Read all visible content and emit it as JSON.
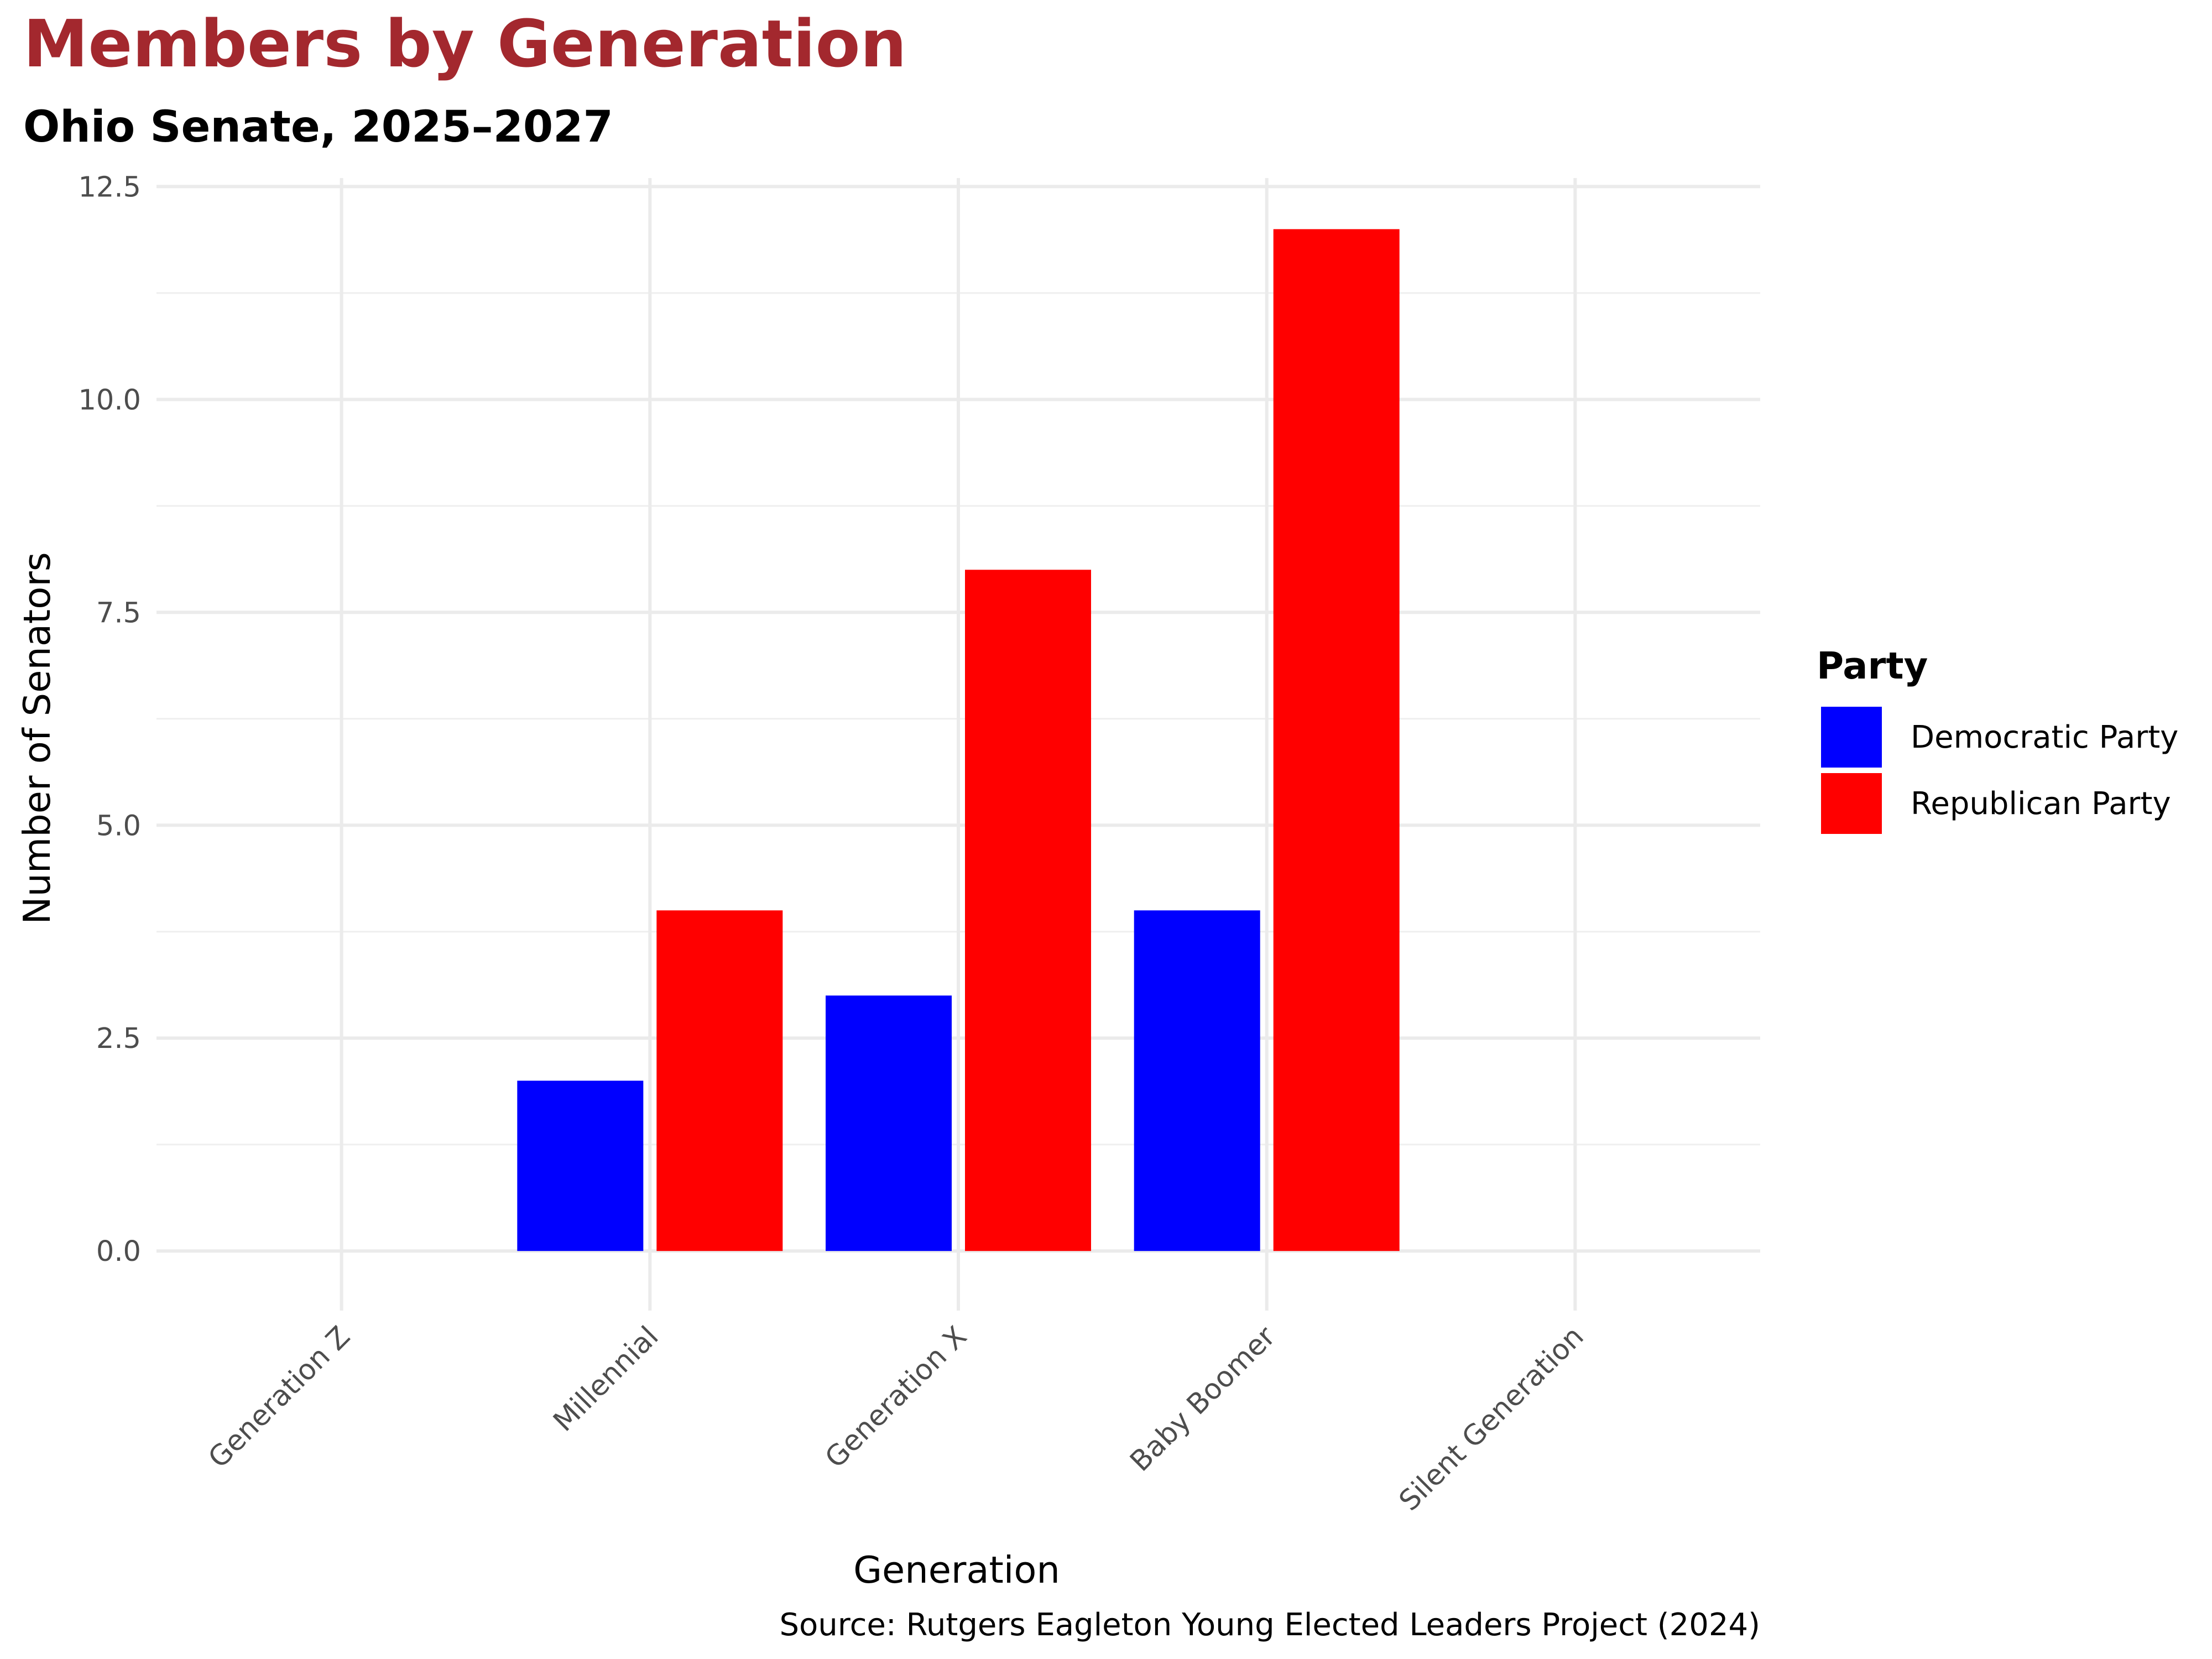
{
  "chart_data": {
    "type": "bar",
    "title": "Members by Generation",
    "subtitle": "Ohio Senate, 2025–2027",
    "xlabel": "Generation",
    "ylabel": "Number of Senators",
    "categories": [
      "Generation Z",
      "Millennial",
      "Generation X",
      "Baby Boomer",
      "Silent Generation"
    ],
    "series": [
      {
        "name": "Democratic Party",
        "color": "#0000ff",
        "values": [
          0,
          2,
          3,
          4,
          0
        ]
      },
      {
        "name": "Republican Party",
        "color": "#ff0000",
        "values": [
          0,
          4,
          8,
          12,
          0
        ]
      }
    ],
    "y_ticks": [
      "0.0",
      "2.5",
      "5.0",
      "7.5",
      "10.0",
      "12.5"
    ],
    "ylim": [
      -0.7,
      12.6
    ],
    "grid": true,
    "legend": {
      "title": "Party",
      "position": "right"
    },
    "caption": "Source: Rutgers Eagleton Young Elected Leaders Project (2024)",
    "title_color": "#a3282e"
  }
}
